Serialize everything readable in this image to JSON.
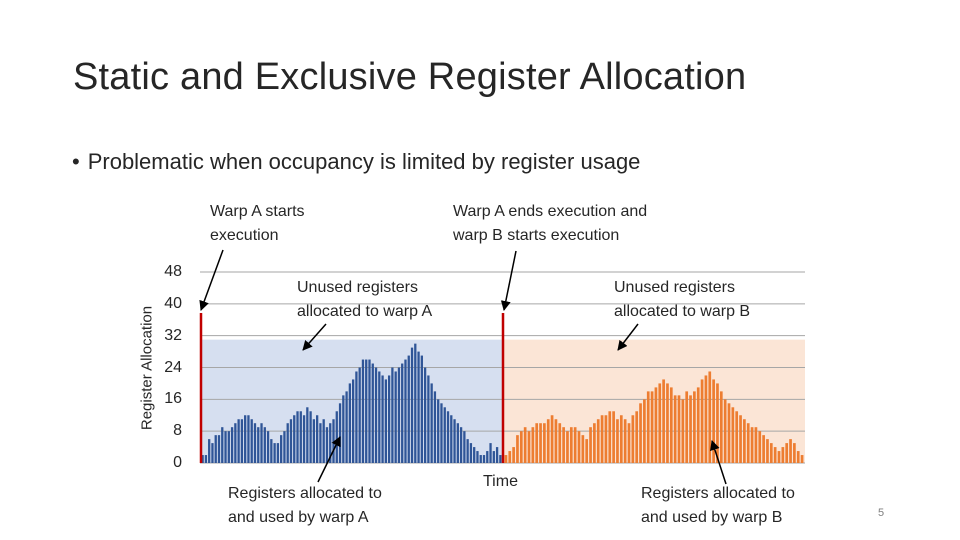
{
  "slide": {
    "title": "Static and Exclusive Register Allocation",
    "bullet": "Problematic when occupancy is limited by register usage",
    "page_number": "5",
    "annotations": {
      "warp_a_starts": [
        "Warp A starts",
        "execution"
      ],
      "warp_a_ends": [
        "Warp A ends execution and",
        "warp B starts execution"
      ],
      "unused_a": [
        "Unused registers",
        "allocated to warp A"
      ],
      "unused_b": [
        "Unused registers",
        "allocated to warp B"
      ],
      "used_a": [
        "Registers allocated to",
        "and used by warp A"
      ],
      "used_b": [
        "Registers allocated to",
        "and used by warp B"
      ]
    }
  },
  "chart_data": {
    "type": "bar",
    "ylabel": "Register Allocation",
    "xlabel": "Time",
    "yticks": [
      0,
      8,
      16,
      24,
      32,
      40,
      48
    ],
    "ylim": [
      0,
      48
    ],
    "grid": true,
    "allocation_level": 31,
    "colors": {
      "warp_a_bar": "#2f5597",
      "warp_b_bar": "#ed7d31",
      "warp_a_region": "#d6dff0",
      "warp_b_region": "#fbe5d6",
      "marker": "#c00000",
      "grid": "#a6a6a6"
    },
    "series": [
      {
        "warp": "A",
        "values": [
          2,
          2,
          6,
          5,
          7,
          7,
          9,
          8,
          8,
          9,
          10,
          11,
          11,
          12,
          12,
          11,
          10,
          9,
          10,
          9,
          8,
          6,
          5,
          5,
          7,
          8,
          10,
          11,
          12,
          13,
          13,
          12,
          14,
          13,
          11,
          12,
          10,
          11,
          9,
          10,
          11,
          13,
          15,
          17,
          18,
          20,
          21,
          23,
          24,
          26,
          26,
          26,
          25,
          24,
          23,
          22,
          21,
          22,
          24,
          23,
          24,
          25,
          26,
          27,
          29,
          30,
          28,
          27,
          24,
          22,
          20,
          18,
          16,
          15,
          14,
          13,
          12,
          11,
          10,
          9,
          8,
          6,
          5,
          4,
          3,
          2,
          2,
          3,
          5,
          3,
          4,
          2
        ]
      },
      {
        "warp": "B",
        "values": [
          2,
          3,
          4,
          7,
          8,
          9,
          8,
          9,
          10,
          10,
          10,
          11,
          12,
          11,
          10,
          9,
          8,
          9,
          9,
          8,
          7,
          6,
          9,
          10,
          11,
          12,
          12,
          13,
          13,
          11,
          12,
          11,
          10,
          12,
          13,
          15,
          16,
          18,
          18,
          19,
          20,
          21,
          20,
          19,
          17,
          17,
          16,
          18,
          17,
          18,
          19,
          21,
          22,
          23,
          21,
          20,
          18,
          16,
          15,
          14,
          13,
          12,
          11,
          10,
          9,
          9,
          8,
          7,
          6,
          5,
          4,
          3,
          4,
          5,
          6,
          5,
          3,
          2
        ]
      }
    ]
  }
}
